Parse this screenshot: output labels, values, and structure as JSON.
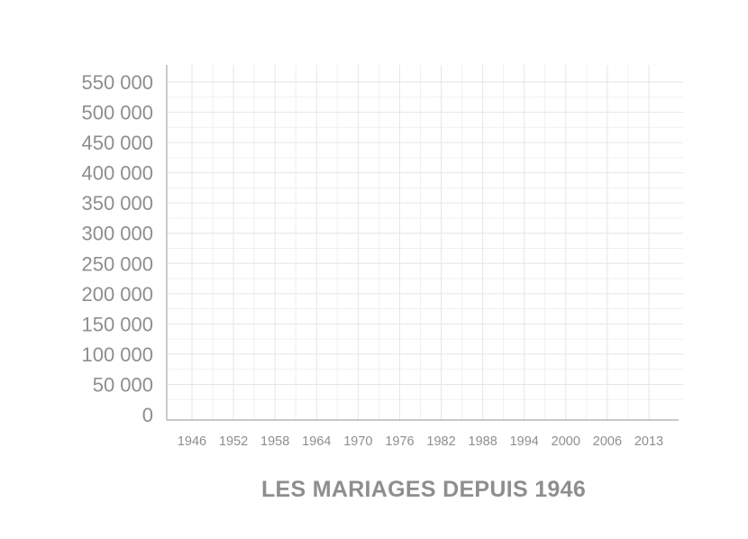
{
  "chart_data": {
    "type": "line",
    "title": "LES MARIAGES DEPUIS 1946",
    "xlabel": "",
    "ylabel": "",
    "categories": [
      "1946",
      "1952",
      "1958",
      "1964",
      "1970",
      "1976",
      "1982",
      "1988",
      "1994",
      "2000",
      "2006",
      "2013"
    ],
    "y_tick_labels": [
      "0",
      "50 000",
      "100 000",
      "150 000",
      "200 000",
      "250 000",
      "300 000",
      "350 000",
      "400 000",
      "450 000",
      "500 000",
      "550 000"
    ],
    "y_ticks": [
      0,
      50000,
      100000,
      150000,
      200000,
      250000,
      300000,
      350000,
      400000,
      450000,
      500000,
      550000
    ],
    "ylim": [
      0,
      560000
    ],
    "series": [],
    "grid": true,
    "colors": {
      "text": "#8e8e8e",
      "grid": "#e6e6e6",
      "axis": "#a9a9a9"
    }
  }
}
